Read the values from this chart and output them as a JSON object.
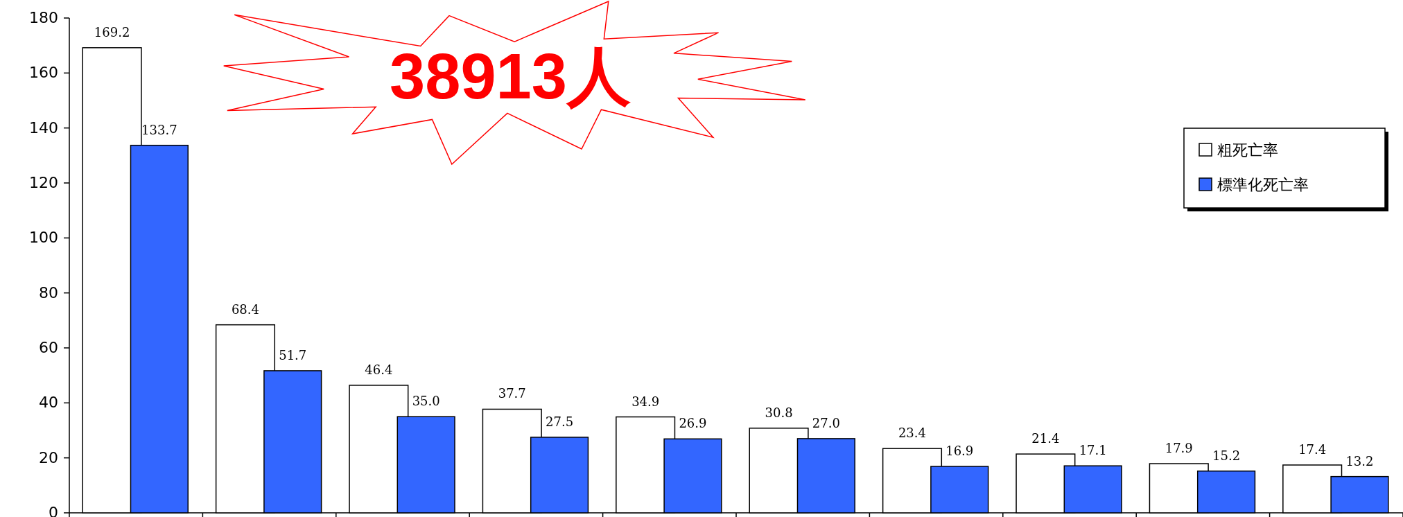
{
  "chart_data": {
    "type": "bar",
    "categories": [
      null,
      null,
      null,
      null,
      null,
      null,
      null,
      null,
      null,
      null
    ],
    "series": [
      {
        "name": "粗死亡率",
        "color": "#ffffff",
        "values": [
          169.2,
          68.4,
          46.4,
          37.7,
          34.9,
          30.8,
          23.4,
          21.4,
          17.9,
          17.4
        ],
        "value_labels": [
          "169.2",
          "68.4",
          "46.4",
          "37.7",
          "34.9",
          "30.8",
          "23.4",
          "21.4",
          "17.9",
          "17.4"
        ]
      },
      {
        "name": "標準化死亡率",
        "color": "#3366ff",
        "values": [
          133.7,
          51.7,
          35.0,
          27.5,
          26.9,
          27.0,
          16.9,
          17.1,
          15.2,
          13.2
        ],
        "value_labels": [
          "133.7",
          "51.7",
          "35.0",
          "27.5",
          "26.9",
          "27.0",
          "16.9",
          "17.1",
          "15.2",
          "13.2"
        ]
      }
    ],
    "ylim": [
      0,
      180
    ],
    "yticks": [
      0,
      20,
      40,
      60,
      80,
      100,
      120,
      140,
      160,
      180
    ],
    "legend": "top right",
    "grid": false,
    "annotations": [
      "38913人"
    ]
  }
}
